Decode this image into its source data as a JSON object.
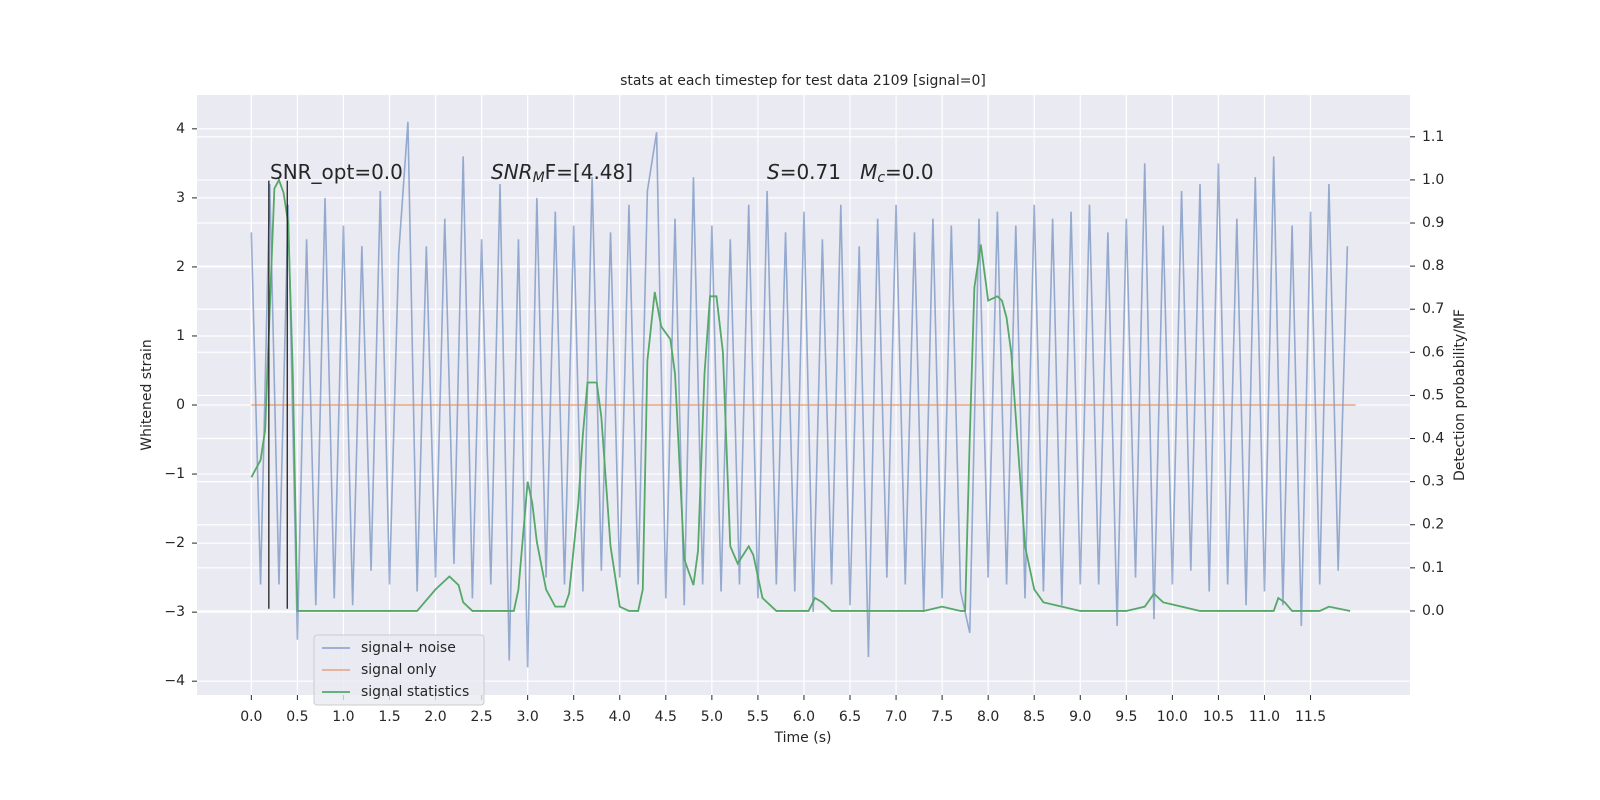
{
  "chart_data": {
    "type": "line",
    "title": "stats at each timestep for test data 2109 [signal=0]",
    "xlabel": "Time (s)",
    "ylabel": "Whitened strain",
    "y2label": "Detection probability/MF",
    "background": "#eaeaf2",
    "grid": true,
    "legend": "lower left",
    "xlim": [
      -0.59,
      12.58
    ],
    "ylim": [
      -4.2,
      4.49
    ],
    "y2lim": [
      -0.195,
      1.197
    ],
    "xticks": [
      {
        "value": 0,
        "label": "0.0"
      },
      {
        "value": 0.5,
        "label": "0.5"
      },
      {
        "value": 1,
        "label": "1.0"
      },
      {
        "value": 1.5,
        "label": "1.5"
      },
      {
        "value": 2,
        "label": "2.0"
      },
      {
        "value": 2.5,
        "label": "2.5"
      },
      {
        "value": 3,
        "label": "3.0"
      },
      {
        "value": 3.5,
        "label": "3.5"
      },
      {
        "value": 4,
        "label": "4.0"
      },
      {
        "value": 4.5,
        "label": "4.5"
      },
      {
        "value": 5,
        "label": "5.0"
      },
      {
        "value": 5.5,
        "label": "5.5"
      },
      {
        "value": 6,
        "label": "6.0"
      },
      {
        "value": 6.5,
        "label": "6.5"
      },
      {
        "value": 7,
        "label": "7.0"
      },
      {
        "value": 7.5,
        "label": "7.5"
      },
      {
        "value": 8,
        "label": "8.0"
      },
      {
        "value": 8.5,
        "label": "8.5"
      },
      {
        "value": 9,
        "label": "9.0"
      },
      {
        "value": 9.5,
        "label": "9.5"
      },
      {
        "value": 10,
        "label": "10.0"
      },
      {
        "value": 10.5,
        "label": "10.5"
      },
      {
        "value": 11,
        "label": "11.0"
      },
      {
        "value": 11.5,
        "label": "11.5"
      }
    ],
    "yticks": [
      {
        "value": -4,
        "label": "−4"
      },
      {
        "value": -3,
        "label": "−3"
      },
      {
        "value": -2,
        "label": "−2"
      },
      {
        "value": -1,
        "label": "−1"
      },
      0,
      1,
      2,
      3,
      4
    ],
    "y2ticks": [
      {
        "value": 0,
        "label": "0.0"
      },
      0.1,
      0.2,
      0.3,
      0.4,
      0.5,
      0.6,
      0.7,
      0.8,
      0.9,
      {
        "value": 1,
        "label": "1.0"
      },
      1.1
    ],
    "annotations": [
      {
        "parts": [
          "SNR_opt=0.0"
        ]
      },
      {
        "parts": [
          "SNR",
          "M",
          "F=[4.48]"
        ]
      },
      {
        "parts": [
          "S",
          "=0.71   ",
          "M",
          "c",
          "=0.0"
        ]
      }
    ],
    "vlines": {
      "x": [
        0.19,
        0.39
      ],
      "ymin": -2.95,
      "ymax": 3.25,
      "color": "#222222"
    },
    "series": [
      {
        "name": "signal+ noise",
        "color": "#4c72b0",
        "x": [
          0,
          0.1,
          0.2,
          0.3,
          0.4,
          0.5,
          0.6,
          0.7,
          0.8,
          0.9,
          1,
          1.1,
          1.2,
          1.3,
          1.4,
          1.5,
          1.6,
          1.7,
          1.8,
          1.9,
          2,
          2.1,
          2.2,
          2.3,
          2.4,
          2.5,
          2.6,
          2.7,
          2.8,
          2.9,
          3,
          3.1,
          3.2,
          3.3,
          3.4,
          3.5,
          3.6,
          3.7,
          3.8,
          3.9,
          4,
          4.1,
          4.2,
          4.3,
          4.4,
          4.5,
          4.6,
          4.7,
          4.8,
          4.9,
          5,
          5.1,
          5.2,
          5.3,
          5.4,
          5.5,
          5.6,
          5.7,
          5.8,
          5.9,
          6,
          6.1,
          6.2,
          6.3,
          6.4,
          6.5,
          6.6,
          6.7,
          6.8,
          6.9,
          7,
          7.1,
          7.2,
          7.3,
          7.4,
          7.5,
          7.6,
          7.7,
          7.8,
          7.9,
          8,
          8.1,
          8.2,
          8.3,
          8.4,
          8.5,
          8.6,
          8.7,
          8.8,
          8.9,
          9,
          9.1,
          9.2,
          9.3,
          9.4,
          9.5,
          9.6,
          9.7,
          9.8,
          9.9,
          10,
          10.1,
          10.2,
          10.3,
          10.4,
          10.5,
          10.6,
          10.7,
          10.8,
          10.9,
          11,
          11.1,
          11.2,
          11.3,
          11.4,
          11.5,
          11.6,
          11.7,
          11.8,
          11.9
        ],
        "values": [
          2.5,
          -2.6,
          3.2,
          -2.6,
          2.9,
          -3.4,
          2.4,
          -2.9,
          3.0,
          -2.8,
          2.6,
          -2.9,
          2.3,
          -2.4,
          3.1,
          -2.6,
          2.2,
          4.1,
          -2.7,
          2.3,
          -2.5,
          2.7,
          -2.3,
          3.6,
          -2.8,
          2.4,
          -2.6,
          3.2,
          -3.7,
          2.4,
          -3.8,
          3.0,
          -2.5,
          2.8,
          -2.6,
          2.6,
          -2.7,
          3.3,
          -2.4,
          2.5,
          -2.5,
          2.9,
          -2.6,
          3.1,
          3.95,
          -2.8,
          2.7,
          -2.9,
          3.3,
          -2.6,
          2.6,
          -2.7,
          2.4,
          -2.6,
          2.9,
          -2.8,
          3.1,
          -2.6,
          2.5,
          -2.7,
          2.8,
          -3.0,
          2.4,
          -2.6,
          2.9,
          -2.9,
          2.3,
          -3.65,
          2.7,
          -2.5,
          2.9,
          -2.6,
          2.5,
          -3.0,
          2.7,
          -2.8,
          2.6,
          -2.7,
          -3.3,
          2.7,
          -2.5,
          2.8,
          -2.6,
          2.6,
          -2.8,
          2.9,
          -2.7,
          2.7,
          -2.9,
          2.8,
          -2.6,
          2.9,
          -2.6,
          2.5,
          -3.2,
          2.7,
          -2.5,
          3.5,
          -3.1,
          2.6,
          -2.6,
          3.1,
          -2.4,
          3.2,
          -2.7,
          3.5,
          -2.6,
          2.7,
          -2.9,
          3.3,
          -2.7,
          3.6,
          -2.9,
          2.6,
          -3.2,
          2.8,
          -2.6,
          3.2,
          -2.4,
          2.3
        ]
      },
      {
        "name": "signal only",
        "color": "#dd8452",
        "x": [
          0,
          11.99
        ],
        "values": [
          0,
          0
        ]
      },
      {
        "name": "signal statistics",
        "color": "#55a868",
        "axis": "y2",
        "x": [
          0,
          0.1,
          0.15,
          0.25,
          0.3,
          0.35,
          0.4,
          0.45,
          0.5,
          1.8,
          2.0,
          2.15,
          2.25,
          2.3,
          2.4,
          2.85,
          2.9,
          3.0,
          3.05,
          3.1,
          3.2,
          3.3,
          3.4,
          3.45,
          3.55,
          3.6,
          3.65,
          3.75,
          3.8,
          3.9,
          4.0,
          4.1,
          4.2,
          4.25,
          4.3,
          4.38,
          4.45,
          4.55,
          4.6,
          4.7,
          4.8,
          4.85,
          4.92,
          4.98,
          5.05,
          5.12,
          5.2,
          5.28,
          5.4,
          5.45,
          5.55,
          5.7,
          5.9,
          6.05,
          6.12,
          6.2,
          6.3,
          6.6,
          7.0,
          7.3,
          7.5,
          7.7,
          7.75,
          7.8,
          7.85,
          7.92,
          8.0,
          8.1,
          8.15,
          8.2,
          8.25,
          8.4,
          8.5,
          8.6,
          8.8,
          9.0,
          9.5,
          9.7,
          9.8,
          9.9,
          10.1,
          10.3,
          11.0,
          11.1,
          11.15,
          11.22,
          11.3,
          11.5,
          11.6,
          11.7,
          11.93
        ],
        "values": [
          0.31,
          0.35,
          0.42,
          0.98,
          1.0,
          0.97,
          0.9,
          0.55,
          0.0,
          0.0,
          0.05,
          0.08,
          0.06,
          0.02,
          0.0,
          0.0,
          0.05,
          0.3,
          0.25,
          0.16,
          0.05,
          0.01,
          0.01,
          0.04,
          0.25,
          0.41,
          0.53,
          0.53,
          0.45,
          0.15,
          0.01,
          0.0,
          0.0,
          0.05,
          0.58,
          0.74,
          0.66,
          0.63,
          0.55,
          0.12,
          0.06,
          0.14,
          0.55,
          0.73,
          0.73,
          0.6,
          0.15,
          0.11,
          0.15,
          0.13,
          0.03,
          0.0,
          0.0,
          0.0,
          0.03,
          0.02,
          0.0,
          0.0,
          0.0,
          0.0,
          0.01,
          0.0,
          0.0,
          0.4,
          0.75,
          0.85,
          0.72,
          0.73,
          0.72,
          0.68,
          0.6,
          0.15,
          0.05,
          0.02,
          0.01,
          0.0,
          0.0,
          0.01,
          0.04,
          0.02,
          0.01,
          0.0,
          0.0,
          0.0,
          0.03,
          0.02,
          0.0,
          0.0,
          0.0,
          0.01,
          0.0
        ]
      }
    ]
  }
}
